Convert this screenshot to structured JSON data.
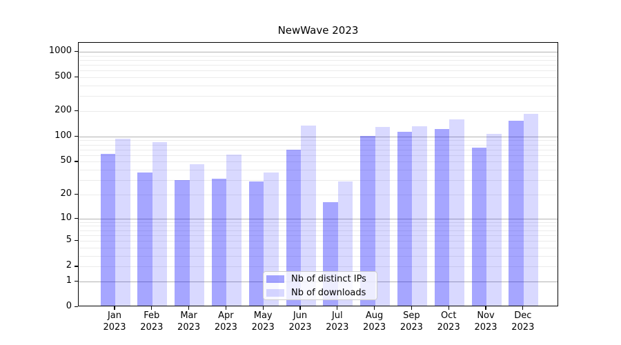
{
  "title": "NewWave 2023",
  "chart_data": {
    "type": "bar",
    "title": "NewWave 2023",
    "categories": [
      "Jan",
      "Feb",
      "Mar",
      "Apr",
      "May",
      "Jun",
      "Jul",
      "Aug",
      "Sep",
      "Oct",
      "Nov",
      "Dec"
    ],
    "category_year": "2023",
    "series": [
      {
        "name": "Nb of distinct IPs",
        "color": "rgba(0,0,255,0.35)",
        "color_hex_on_white": "#a6a6f5",
        "values": [
          62,
          37,
          30,
          31,
          29,
          70,
          16,
          102,
          114,
          123,
          74,
          154
        ]
      },
      {
        "name": "Nb of downloads",
        "color": "rgba(0,0,255,0.15)",
        "color_hex_on_white": "#dcdcf9",
        "values": [
          95,
          86,
          47,
          61,
          37,
          135,
          29,
          130,
          133,
          160,
          108,
          185
        ]
      }
    ],
    "y_axis": {
      "scale": "symlog-log1p",
      "ticks": [
        0,
        1,
        2,
        5,
        10,
        20,
        50,
        100,
        200,
        500,
        1000
      ],
      "top_value": 1280
    },
    "grid": {
      "major_lines": [
        1,
        10,
        100,
        1000
      ],
      "minor_lines": [
        2,
        3,
        4,
        5,
        6,
        7,
        8,
        9,
        20,
        30,
        40,
        50,
        60,
        70,
        80,
        90,
        200,
        300,
        400,
        500,
        600,
        700,
        800,
        900
      ],
      "major_color": "#b2b2b2",
      "minor_color": "#ebebeb"
    },
    "legend_position": "bottom-center",
    "xlabel": "",
    "ylabel": ""
  }
}
